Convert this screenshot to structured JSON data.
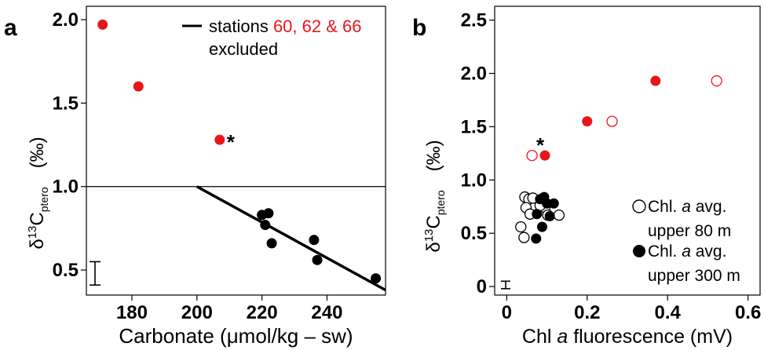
{
  "chart_data": [
    {
      "panel_label": "a",
      "type": "scatter",
      "title": "",
      "xlabel": "Carbonate  (μmol/kg – sw)",
      "ylabel_main": "δ",
      "ylabel_sup": "13",
      "ylabel_c": "C",
      "ylabel_sub": "ptero",
      "ylabel_unit": "(‰)",
      "xlim": [
        166,
        258
      ],
      "ylim": [
        0.35,
        2.08
      ],
      "xticks": [
        180,
        200,
        220,
        240
      ],
      "yticks": [
        0.5,
        1.0,
        1.5,
        2.0
      ],
      "ytick_labels": [
        "0.5",
        "1.0",
        "1.5",
        "2.0"
      ],
      "grid": false,
      "legend": {
        "placement": "top-right",
        "line_label": "stations ",
        "stations_label": "60, 62 & 66",
        "line2_label": "excluded"
      },
      "reference_line_y": 1.0,
      "fit_line": {
        "x": [
          200,
          258
        ],
        "y": [
          1.0,
          0.38
        ]
      },
      "asterisk": "*",
      "series": [
        {
          "color": "#e8151b",
          "marker": "filled",
          "points": [
            {
              "x": 171,
              "y": 1.97
            },
            {
              "x": 182,
              "y": 1.6
            },
            {
              "x": 207,
              "y": 1.28
            }
          ]
        },
        {
          "color": "#000000",
          "marker": "filled",
          "points": [
            {
              "x": 220,
              "y": 0.83
            },
            {
              "x": 221,
              "y": 0.77
            },
            {
              "x": 222,
              "y": 0.84
            },
            {
              "x": 223,
              "y": 0.66
            },
            {
              "x": 236,
              "y": 0.68
            },
            {
              "x": 237,
              "y": 0.56
            },
            {
              "x": 255,
              "y": 0.45
            }
          ]
        }
      ],
      "error_bar": {
        "y_low": 0.41,
        "y_high": 0.55
      }
    },
    {
      "panel_label": "b",
      "type": "scatter",
      "title": "",
      "xlabel": "Chl a fluorescence (mV)",
      "xlabel_pre": "Chl ",
      "xlabel_italic": "a",
      "xlabel_post": " fluorescence (mV)",
      "ylabel_main": "δ",
      "ylabel_sup": "13",
      "ylabel_c": "C",
      "ylabel_sub": "ptero",
      "ylabel_unit": "(‰)",
      "xlim": [
        -0.03,
        0.63
      ],
      "ylim": [
        -0.08,
        2.63
      ],
      "xticks": [
        0,
        0.2,
        0.4,
        0.6
      ],
      "xtick_labels": [
        "0",
        "0.2",
        "0.4",
        "0.6"
      ],
      "yticks": [
        0,
        0.5,
        1.0,
        1.5,
        2.0,
        2.5
      ],
      "ytick_labels": [
        "0",
        "0.5",
        "1.0",
        "1.5",
        "2.0",
        "2.5"
      ],
      "grid": false,
      "legend": {
        "placement": "bottom-right",
        "items": [
          {
            "marker": "open",
            "line1_pre": "Chl. ",
            "line1_italic": "a",
            "line1_post": " avg.",
            "line2": "upper 80 m"
          },
          {
            "marker": "filled",
            "line1_pre": "Chl. ",
            "line1_italic": "a",
            "line1_post": " avg.",
            "line2": "upper 300 m"
          }
        ]
      },
      "asterisk": "*",
      "series": [
        {
          "name": "Chl. a avg. upper 80 m",
          "marker": "open",
          "points": [
            {
              "x": 0.063,
              "y": 1.23,
              "color": "#e8151b"
            },
            {
              "x": 0.262,
              "y": 1.55,
              "color": "#e8151b"
            },
            {
              "x": 0.522,
              "y": 1.93,
              "color": "#e8151b"
            },
            {
              "x": 0.045,
              "y": 0.84,
              "color": "#000000"
            },
            {
              "x": 0.055,
              "y": 0.82,
              "color": "#000000"
            },
            {
              "x": 0.065,
              "y": 0.83,
              "color": "#000000"
            },
            {
              "x": 0.048,
              "y": 0.74,
              "color": "#000000"
            },
            {
              "x": 0.058,
              "y": 0.68,
              "color": "#000000"
            },
            {
              "x": 0.035,
              "y": 0.56,
              "color": "#000000"
            },
            {
              "x": 0.043,
              "y": 0.46,
              "color": "#000000"
            },
            {
              "x": 0.095,
              "y": 0.74,
              "color": "#000000"
            },
            {
              "x": 0.102,
              "y": 0.67,
              "color": "#000000"
            },
            {
              "x": 0.13,
              "y": 0.67,
              "color": "#000000"
            },
            {
              "x": 0.083,
              "y": 0.76,
              "color": "#000000"
            }
          ]
        },
        {
          "name": "Chl. a avg. upper 300 m",
          "marker": "filled",
          "points": [
            {
              "x": 0.095,
              "y": 1.23,
              "color": "#e8151b"
            },
            {
              "x": 0.2,
              "y": 1.55,
              "color": "#e8151b"
            },
            {
              "x": 0.37,
              "y": 1.93,
              "color": "#e8151b"
            },
            {
              "x": 0.083,
              "y": 0.82,
              "color": "#000000"
            },
            {
              "x": 0.093,
              "y": 0.84,
              "color": "#000000"
            },
            {
              "x": 0.075,
              "y": 0.68,
              "color": "#000000"
            },
            {
              "x": 0.1,
              "y": 0.78,
              "color": "#000000"
            },
            {
              "x": 0.117,
              "y": 0.78,
              "color": "#000000"
            },
            {
              "x": 0.107,
              "y": 0.66,
              "color": "#000000"
            },
            {
              "x": 0.088,
              "y": 0.56,
              "color": "#000000"
            },
            {
              "x": 0.073,
              "y": 0.45,
              "color": "#000000"
            }
          ]
        }
      ],
      "error_bar": {
        "y_low": -0.02,
        "y_high": 0.05
      }
    }
  ]
}
